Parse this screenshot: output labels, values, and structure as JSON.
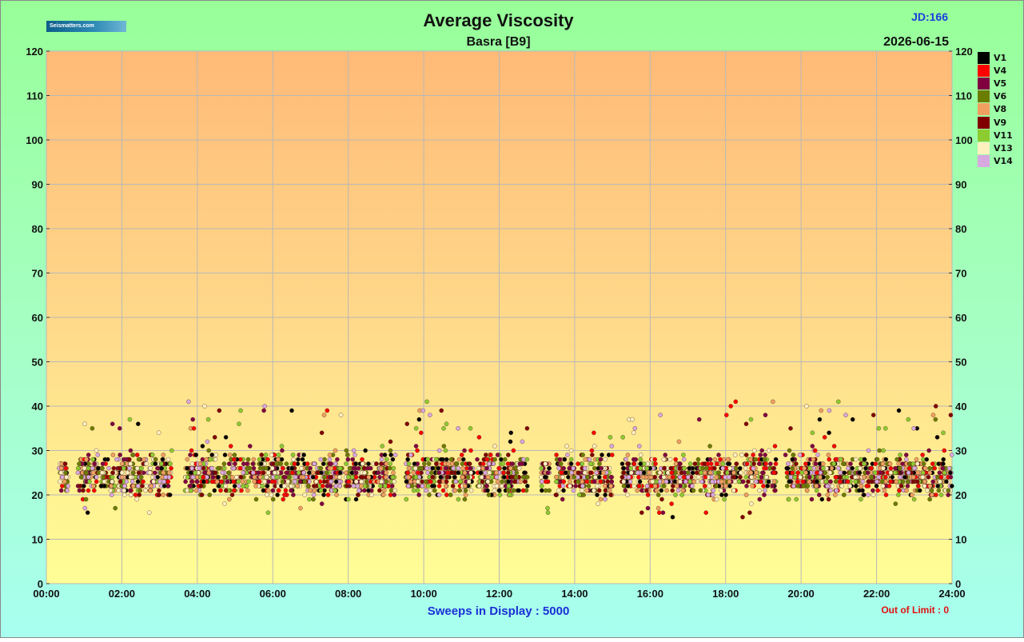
{
  "logo_text": "Seismatters.com",
  "title": "Average Viscosity",
  "subtitle": "Basra  [B9]",
  "jd": "JD:166",
  "date": "2026-06-15",
  "sweeps": "Sweeps in Display : 5000",
  "out_of_limit": "Out of Limit : 0",
  "chart_data": {
    "type": "scatter",
    "title": "Average Viscosity",
    "xlabel": "",
    "ylabel": "",
    "xlim": [
      "00:00",
      "24:00"
    ],
    "ylim": [
      0,
      120
    ],
    "grid": true,
    "legend_placement": "right",
    "x_ticks": [
      "00:00",
      "02:00",
      "04:00",
      "06:00",
      "08:00",
      "10:00",
      "12:00",
      "14:00",
      "16:00",
      "18:00",
      "20:00",
      "22:00",
      "24:00"
    ],
    "y_ticks": [
      "0",
      "10",
      "20",
      "30",
      "40",
      "50",
      "60",
      "70",
      "80",
      "90",
      "100",
      "110",
      "120"
    ],
    "series": [
      {
        "name": "V1",
        "color": "#000000"
      },
      {
        "name": "V4",
        "color": "#ff0000"
      },
      {
        "name": "V5",
        "color": "#800040"
      },
      {
        "name": "V6",
        "color": "#6b7d00"
      },
      {
        "name": "V8",
        "color": "#f0a060"
      },
      {
        "name": "V9",
        "color": "#800000"
      },
      {
        "name": "V11",
        "color": "#8ccc30"
      },
      {
        "name": "V13",
        "color": "#fff0c0"
      },
      {
        "name": "V14",
        "color": "#d8a8e0"
      }
    ],
    "clusters": [
      {
        "start": "00:20",
        "end": "00:35",
        "low": 19,
        "high": 27
      },
      {
        "start": "00:50",
        "end": "03:20",
        "low": 16,
        "high": 37
      },
      {
        "start": "03:40",
        "end": "07:50",
        "low": 15,
        "high": 41
      },
      {
        "start": "07:55",
        "end": "09:15",
        "low": 19,
        "high": 33
      },
      {
        "start": "09:30",
        "end": "11:20",
        "low": 19,
        "high": 41
      },
      {
        "start": "11:25",
        "end": "12:45",
        "low": 20,
        "high": 37
      },
      {
        "start": "13:05",
        "end": "13:20",
        "low": 16,
        "high": 27
      },
      {
        "start": "13:30",
        "end": "15:00",
        "low": 18,
        "high": 36
      },
      {
        "start": "15:15",
        "end": "19:20",
        "low": 15,
        "high": 41
      },
      {
        "start": "19:35",
        "end": "24:00",
        "low": 17,
        "high": 41
      }
    ]
  }
}
